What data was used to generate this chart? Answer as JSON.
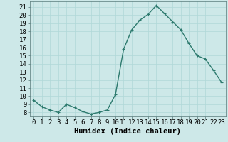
{
  "x": [
    0,
    1,
    2,
    3,
    4,
    5,
    6,
    7,
    8,
    9,
    10,
    11,
    12,
    13,
    14,
    15,
    16,
    17,
    18,
    19,
    20,
    21,
    22,
    23
  ],
  "y": [
    9.5,
    8.7,
    8.3,
    8.0,
    9.0,
    8.6,
    8.1,
    7.8,
    8.0,
    8.3,
    10.2,
    15.8,
    18.2,
    19.4,
    20.1,
    21.2,
    20.2,
    19.2,
    18.2,
    16.5,
    15.0,
    14.6,
    13.2,
    11.7
  ],
  "line_color": "#2d7a6e",
  "marker": "+",
  "marker_size": 3,
  "bg_color": "#cde8e8",
  "grid_color": "#b0d8d8",
  "xlabel": "Humidex (Indice chaleur)",
  "yticks": [
    8,
    9,
    10,
    11,
    12,
    13,
    14,
    15,
    16,
    17,
    18,
    19,
    20,
    21
  ],
  "ylim": [
    7.5,
    21.7
  ],
  "xlim": [
    -0.5,
    23.5
  ],
  "xticks": [
    0,
    1,
    2,
    3,
    4,
    5,
    6,
    7,
    8,
    9,
    10,
    11,
    12,
    13,
    14,
    15,
    16,
    17,
    18,
    19,
    20,
    21,
    22,
    23
  ],
  "xlabel_fontsize": 7.5,
  "tick_fontsize": 6.5,
  "line_width": 1.0
}
